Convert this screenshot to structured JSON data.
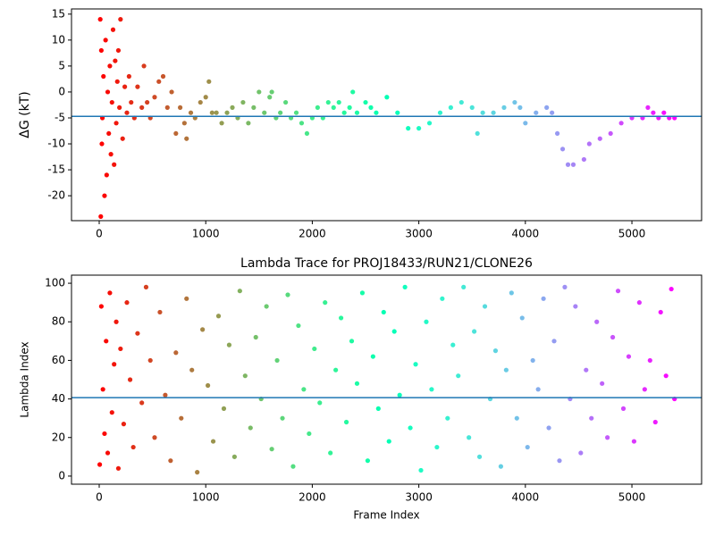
{
  "chart_data": [
    {
      "type": "scatter",
      "ylabel": "ΔG (kT)",
      "colormap": "rainbow_r",
      "x": [
        10,
        15,
        20,
        25,
        30,
        40,
        50,
        60,
        70,
        80,
        90,
        100,
        110,
        120,
        130,
        140,
        150,
        160,
        170,
        180,
        190,
        200,
        220,
        240,
        260,
        280,
        300,
        330,
        360,
        400,
        420,
        450,
        480,
        520,
        560,
        600,
        640,
        680,
        720,
        760,
        800,
        820,
        860,
        900,
        950,
        1000,
        1030,
        1060,
        1100,
        1150,
        1200,
        1250,
        1300,
        1350,
        1400,
        1450,
        1500,
        1550,
        1600,
        1620,
        1660,
        1700,
        1750,
        1800,
        1850,
        1900,
        1950,
        2000,
        2050,
        2100,
        2150,
        2200,
        2250,
        2300,
        2350,
        2380,
        2420,
        2500,
        2550,
        2600,
        2700,
        2800,
        2900,
        3000,
        3100,
        3200,
        3300,
        3400,
        3500,
        3550,
        3600,
        3700,
        3800,
        3900,
        3950,
        4000,
        4100,
        4200,
        4250,
        4300,
        4350,
        4400,
        4450,
        4550,
        4600,
        4700,
        4800,
        4900,
        5000,
        5100,
        5150,
        5200,
        5250,
        5300,
        5350,
        5400
      ],
      "values": [
        14,
        -24,
        8,
        -10,
        -5,
        3,
        -20,
        10,
        -16,
        0,
        -8,
        5,
        -12,
        -2,
        12,
        -14,
        6,
        -6,
        2,
        8,
        -3,
        14,
        -9,
        1,
        -4,
        3,
        -2,
        -5,
        1,
        -3,
        5,
        -2,
        -5,
        -1,
        2,
        3,
        -3,
        0,
        -8,
        -3,
        -6,
        -9,
        -4,
        -5,
        -2,
        -1,
        2,
        -4,
        -4,
        -6,
        -4,
        -3,
        -5,
        -2,
        -6,
        -3,
        0,
        -4,
        -1,
        0,
        -5,
        -4,
        -2,
        -5,
        -4,
        -6,
        -8,
        -5,
        -3,
        -5,
        -2,
        -3,
        -2,
        -4,
        -3,
        0,
        -4,
        -2,
        -3,
        -4,
        -1,
        -4,
        -7,
        -7,
        -6,
        -4,
        -3,
        -2,
        -3,
        -8,
        -4,
        -4,
        -3,
        -2,
        -3,
        -6,
        -4,
        -3,
        -4,
        -8,
        -11,
        -14,
        -14,
        -13,
        -10,
        -9,
        -8,
        -6,
        -5,
        -5,
        -3,
        -4,
        -5,
        -4,
        -5,
        -5
      ],
      "xlim": [
        -260,
        5654
      ],
      "ylim": [
        -24.8,
        16.0
      ],
      "xticks": [
        0,
        1000,
        2000,
        3000,
        4000,
        5000
      ],
      "yticks": [
        -20,
        -15,
        -10,
        -5,
        0,
        5,
        10,
        15
      ],
      "hline": {
        "value": -4.7,
        "color": "#1f77b4"
      }
    },
    {
      "type": "scatter",
      "title": "Lambda Trace for PROJ18433/RUN21/CLONE26",
      "xlabel": "Frame Index",
      "ylabel": "Lambda Index",
      "colormap": "rainbow_r",
      "x": [
        5,
        20,
        35,
        50,
        65,
        80,
        100,
        120,
        140,
        160,
        180,
        200,
        230,
        260,
        290,
        320,
        360,
        400,
        440,
        480,
        520,
        570,
        620,
        670,
        720,
        770,
        820,
        870,
        920,
        970,
        1020,
        1070,
        1120,
        1170,
        1220,
        1270,
        1320,
        1370,
        1420,
        1470,
        1520,
        1570,
        1620,
        1670,
        1720,
        1770,
        1820,
        1870,
        1920,
        1970,
        2020,
        2070,
        2120,
        2170,
        2220,
        2270,
        2320,
        2370,
        2420,
        2470,
        2520,
        2570,
        2620,
        2670,
        2720,
        2770,
        2820,
        2870,
        2920,
        2970,
        3020,
        3070,
        3120,
        3170,
        3220,
        3270,
        3320,
        3370,
        3420,
        3470,
        3520,
        3570,
        3620,
        3670,
        3720,
        3770,
        3820,
        3870,
        3920,
        3970,
        4020,
        4070,
        4120,
        4170,
        4220,
        4270,
        4320,
        4370,
        4420,
        4470,
        4520,
        4570,
        4620,
        4670,
        4720,
        4770,
        4820,
        4870,
        4920,
        4970,
        5020,
        5070,
        5120,
        5170,
        5220,
        5270,
        5320,
        5370,
        5400
      ],
      "values": [
        6,
        88,
        45,
        22,
        70,
        12,
        95,
        33,
        58,
        80,
        4,
        66,
        27,
        90,
        50,
        15,
        74,
        38,
        98,
        60,
        20,
        85,
        42,
        8,
        64,
        30,
        92,
        55,
        2,
        76,
        47,
        18,
        83,
        35,
        68,
        10,
        96,
        52,
        25,
        72,
        40,
        88,
        14,
        60,
        30,
        94,
        5,
        78,
        45,
        22,
        66,
        38,
        90,
        12,
        55,
        82,
        28,
        70,
        48,
        95,
        8,
        62,
        35,
        85,
        18,
        75,
        42,
        98,
        25,
        58,
        3,
        80,
        45,
        15,
        92,
        30,
        68,
        52,
        98,
        20,
        75,
        10,
        88,
        40,
        65,
        5,
        55,
        95,
        30,
        82,
        15,
        60,
        45,
        92,
        25,
        70,
        8,
        98,
        40,
        88,
        12,
        55,
        30,
        80,
        48,
        20,
        72,
        96,
        35,
        62,
        18,
        90,
        45,
        60,
        28,
        85,
        52,
        97,
        40
      ],
      "xlim": [
        -260,
        5654
      ],
      "ylim": [
        -4.2,
        104.2
      ],
      "xticks": [
        0,
        1000,
        2000,
        3000,
        4000,
        5000
      ],
      "yticks": [
        0,
        20,
        40,
        60,
        80,
        100
      ],
      "hline": {
        "value": 40.7,
        "color": "#1f77b4"
      }
    }
  ]
}
